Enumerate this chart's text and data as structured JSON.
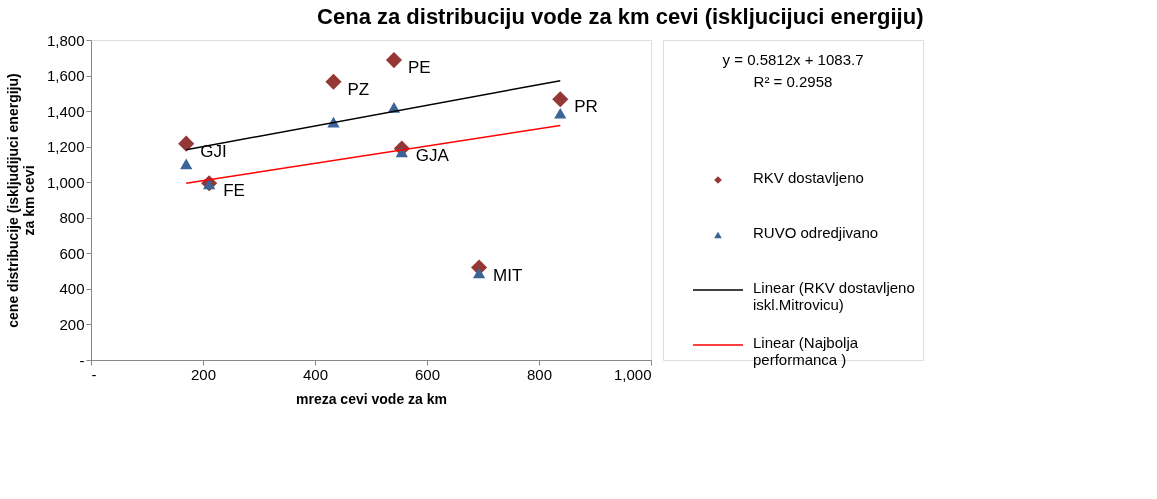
{
  "chart_data": {
    "type": "scatter",
    "title": "Cena za distribuciju vode za km cevi (iskljucijuci energiju)",
    "xlabel": "mreza cevi vode za km",
    "ylabel": "cene distribucije (iskljudijuci energiju)\nza km cevi",
    "series": [
      {
        "name": "RKV dostavljeno",
        "marker": "diamond",
        "color": "#953735",
        "x": [
          170,
          211,
          433,
          541,
          555,
          838,
          693
        ],
        "values": [
          1217,
          994,
          1565,
          1687,
          1190,
          1467,
          520
        ]
      },
      {
        "name": "RUVO odredjivano",
        "marker": "triangle",
        "color": "#3b6597",
        "x": [
          170,
          211,
          433,
          541,
          555,
          838,
          693
        ],
        "values": [
          1103,
          990,
          1338,
          1421,
          1170,
          1388,
          489
        ]
      },
      {
        "name": "Linear (RKV dostavljeno iskl.Mitrovicu)",
        "type": "line",
        "color": "#000000",
        "x": [
          170,
          838
        ],
        "values": [
          1183,
          1571
        ]
      },
      {
        "name": "Linear (Najbolja performanca )",
        "type": "line",
        "color": "#ff0000",
        "x": [
          170,
          838
        ],
        "values": [
          994,
          1319
        ]
      }
    ],
    "annotations": [
      "y = 0.5812x + 1083.7",
      "R² = 0.2958",
      {
        "text": "GJI",
        "x": 170,
        "y": 1217
      },
      {
        "text": "FE",
        "x": 211,
        "y": 994
      },
      {
        "text": "PZ",
        "x": 433,
        "y": 1565
      },
      {
        "text": "PE",
        "x": 541,
        "y": 1687
      },
      {
        "text": "GJA",
        "x": 555,
        "y": 1190
      },
      {
        "text": "PR",
        "x": 838,
        "y": 1467
      },
      {
        "text": "MIT",
        "x": 693,
        "y": 520
      }
    ],
    "xlim": [
      0,
      1000
    ],
    "xticks": [
      {
        "value": 0,
        "label": "-"
      },
      200,
      400,
      600,
      800,
      {
        "value": 1000,
        "label": "1,000"
      }
    ],
    "ylim": [
      0,
      1800
    ],
    "yticks": [
      {
        "value": 0,
        "label": "-"
      },
      200,
      400,
      600,
      800,
      {
        "value": 1000,
        "label": "1,000"
      },
      {
        "value": 1200,
        "label": "1,200"
      },
      {
        "value": 1400,
        "label": "1,400"
      },
      {
        "value": 1600,
        "label": "1,600"
      },
      {
        "value": 1800,
        "label": "1,800"
      }
    ],
    "grid": false,
    "legend": "right"
  }
}
